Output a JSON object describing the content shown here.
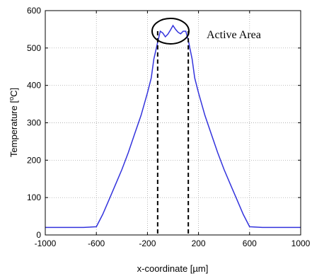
{
  "chart_data": {
    "type": "line",
    "xlabel": "x-coordinate [µm]",
    "ylabel_main": "Temperature [",
    "ylabel_sup": "o",
    "ylabel_end": "C]",
    "xlim": [
      -1000,
      1000
    ],
    "ylim": [
      0,
      600
    ],
    "x_ticks": [
      -1000,
      -600,
      -200,
      200,
      600,
      1000
    ],
    "y_ticks": [
      0,
      100,
      200,
      300,
      400,
      500,
      600
    ],
    "x_tick_labels": [
      "-1000",
      "-600",
      "-200",
      "200",
      "600",
      "1000"
    ],
    "y_tick_labels": [
      "0",
      "100",
      "200",
      "300",
      "400",
      "500",
      "600"
    ],
    "grid": true,
    "line_color": "#3333dd",
    "series": [
      {
        "x": [
          -1000,
          -900,
          -800,
          -700,
          -600,
          -550,
          -500,
          -450,
          -400,
          -350,
          -300,
          -250,
          -200,
          -170,
          -150,
          -120,
          -100,
          -80,
          -60,
          -40,
          -20,
          0,
          20,
          40,
          60,
          80,
          100,
          120,
          150,
          170,
          200,
          250,
          300,
          350,
          400,
          450,
          500,
          550,
          600,
          700,
          800,
          900,
          1000
        ],
        "y": [
          20,
          20,
          20,
          20,
          22,
          55,
          95,
          135,
          175,
          220,
          270,
          320,
          380,
          420,
          470,
          515,
          545,
          540,
          530,
          537,
          548,
          560,
          550,
          542,
          538,
          545,
          545,
          520,
          470,
          420,
          380,
          320,
          270,
          220,
          175,
          135,
          95,
          55,
          22,
          20,
          20,
          20,
          20
        ]
      }
    ],
    "annotation": {
      "text": "Active Area",
      "dashed_x": [
        -120,
        120
      ]
    }
  }
}
